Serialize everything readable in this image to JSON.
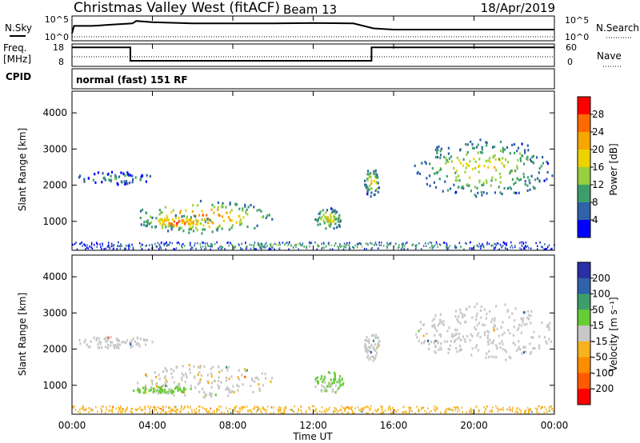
{
  "header": {
    "station": "Christmas Valley West (fitACF)",
    "beam": "Beam 13",
    "date": "18/Apr/2019"
  },
  "aux_panels": {
    "nsky_label": "N.Sky",
    "nsearch_label": "N.Search",
    "freq_label_line1": "Freq.",
    "freq_label_line2": "[MHz]",
    "nave_label": "Nave",
    "cpid_label": "CPID",
    "cpid_value": "normal (fast) 151 RF",
    "noise_left_ticks": [
      "10^5",
      "10^0"
    ],
    "noise_right_ticks": [
      "10^5",
      "10^0"
    ],
    "freq_left_ticks": [
      "18",
      "8"
    ],
    "freq_right_ticks": [
      "60",
      "0"
    ]
  },
  "colorbars": {
    "power": {
      "label": "Power [dB]",
      "ticks": [
        "28",
        "24",
        "20",
        "16",
        "12",
        "8",
        "4"
      ],
      "colors": [
        "#ff0000",
        "#ff6a00",
        "#f7a600",
        "#ecd300",
        "#97cf3f",
        "#3e9e6a",
        "#2f62a8",
        "#0000ff"
      ]
    },
    "velocity": {
      "label": "Velocity [m s⁻¹]",
      "ticks": [
        "200",
        "100",
        "50",
        "15",
        "-15",
        "-50",
        "-100",
        "-200"
      ],
      "colors": [
        "#2a2fa6",
        "#2f62a8",
        "#3e9e6a",
        "#66cc33",
        "#c8c8c8",
        "#f7b21e",
        "#ff8c00",
        "#ff5a00",
        "#ff0000"
      ]
    }
  },
  "chart_data": [
    {
      "type": "line",
      "title": "N.Sky / N.Search",
      "x_unit": "hours UT",
      "xlim": [
        0,
        24
      ],
      "series": [
        {
          "name": "N.Sky",
          "x": [
            0,
            0.1,
            1,
            2,
            3,
            3.2,
            4,
            6,
            8,
            10,
            12,
            14,
            15,
            16,
            18,
            20,
            22,
            23.8,
            24
          ],
          "values": [
            0.3,
            0.6,
            0.6,
            0.65,
            0.7,
            0.8,
            0.75,
            0.7,
            0.7,
            0.7,
            0.72,
            0.7,
            0.5,
            0.45,
            0.45,
            0.45,
            0.45,
            0.45,
            0.45
          ]
        }
      ]
    },
    {
      "type": "line",
      "title": "Freq. / Nave",
      "x_unit": "hours UT",
      "xlim": [
        0,
        24
      ],
      "series": [
        {
          "name": "Freq. [MHz]",
          "x": [
            0,
            2.9,
            2.9,
            14.9,
            14.9,
            24
          ],
          "values": [
            16.5,
            16.5,
            10.5,
            10.5,
            16.5,
            16.5
          ]
        },
        {
          "name": "Nave",
          "x": [
            0,
            24
          ],
          "values": [
            22,
            22
          ]
        }
      ]
    },
    {
      "type": "heatmap",
      "title": "Power [dB]",
      "xlabel": "",
      "ylabel": "Slant Range [km]",
      "xlim": [
        0,
        24
      ],
      "ylim": [
        200,
        4600
      ],
      "yticks": [
        1000,
        2000,
        3000,
        4000
      ],
      "zlim": [
        0,
        32
      ],
      "regions": [
        {
          "x": [
            3.0,
            10.0
          ],
          "y": [
            700,
            1600
          ],
          "peak": 28
        },
        {
          "x": [
            3.5,
            7.0
          ],
          "y": [
            800,
            1200
          ],
          "peak": 30
        },
        {
          "x": [
            0.2,
            4.0
          ],
          "y": [
            2050,
            2400
          ],
          "peak": 12
        },
        {
          "x": [
            12.0,
            13.5
          ],
          "y": [
            800,
            1400
          ],
          "peak": 20
        },
        {
          "x": [
            14.5,
            15.3
          ],
          "y": [
            1700,
            2500
          ],
          "peak": 22
        },
        {
          "x": [
            17.0,
            24.0
          ],
          "y": [
            1700,
            3300
          ],
          "peak": 20
        },
        {
          "x": [
            0.0,
            24.0
          ],
          "y": [
            250,
            450
          ],
          "peak": 14
        }
      ]
    },
    {
      "type": "heatmap",
      "title": "Velocity [m s⁻¹]",
      "xlabel": "Time UT",
      "ylabel": "Slant Range [km]",
      "xlim": [
        0,
        24
      ],
      "ylim": [
        200,
        4600
      ],
      "yticks": [
        1000,
        2000,
        3000,
        4000
      ],
      "xticks": [
        "00:00",
        "04:00",
        "08:00",
        "12:00",
        "16:00",
        "20:00",
        "00:00"
      ],
      "zlim": [
        -200,
        200
      ],
      "regions": [
        {
          "x": [
            3.0,
            10.0
          ],
          "y": [
            700,
            1600
          ],
          "value": -5
        },
        {
          "x": [
            3.0,
            6.0
          ],
          "y": [
            800,
            1000
          ],
          "value": 25
        },
        {
          "x": [
            0.2,
            4.0
          ],
          "y": [
            2050,
            2400
          ],
          "value": 0
        },
        {
          "x": [
            12.0,
            13.5
          ],
          "y": [
            800,
            1400
          ],
          "value": 20
        },
        {
          "x": [
            14.5,
            15.3
          ],
          "y": [
            1700,
            2500
          ],
          "value": 0
        },
        {
          "x": [
            17.0,
            24.0
          ],
          "y": [
            1700,
            3300
          ],
          "value": 0
        },
        {
          "x": [
            0.0,
            24.0
          ],
          "y": [
            250,
            450
          ],
          "value": -30
        }
      ]
    }
  ]
}
